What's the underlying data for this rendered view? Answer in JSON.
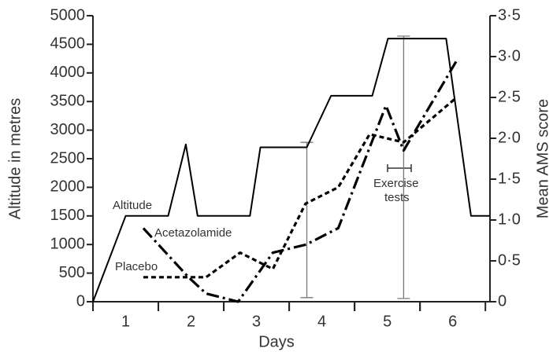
{
  "chart_data": {
    "type": "line",
    "x_label": "Days",
    "y_label": "Altitude in metres",
    "y2_label": "Mean AMS score",
    "xlim": [
      0.5,
      6.57
    ],
    "xticks": [
      1,
      2,
      3,
      4,
      5,
      6
    ],
    "ylim": [
      0,
      5000
    ],
    "yticks": [
      0,
      500,
      1000,
      1500,
      2000,
      2500,
      3000,
      3500,
      4000,
      4500,
      5000
    ],
    "y2lim": [
      0,
      3.5
    ],
    "y2ticks": [
      0,
      {
        "value": 0.5,
        "label": "0·5"
      },
      {
        "value": 1,
        "label": "1·0"
      },
      {
        "value": 1.5,
        "label": "1·5"
      },
      {
        "value": 2,
        "label": "2·0"
      },
      {
        "value": 2.5,
        "label": "2·5"
      },
      {
        "value": 3,
        "label": "3·0"
      },
      {
        "value": 3.5,
        "label": "3·5"
      }
    ],
    "series": [
      {
        "name": "Altitude",
        "color": "#000000",
        "style": "solid",
        "x": [
          0.5,
          1,
          1.65,
          1.92,
          2.1,
          2.9,
          3.06,
          3.77,
          4.14,
          4.77,
          5.01,
          5.9,
          6.28,
          6.57
        ],
        "values": [
          0,
          1500,
          1500,
          2750,
          1500,
          1500,
          2700,
          2700,
          3600,
          3600,
          4600,
          4600,
          1500,
          1500
        ]
      },
      {
        "name": "Acetazolamide",
        "color": "#000000",
        "style": "dashdot",
        "axis": "y2",
        "x": [
          1.27,
          1.96,
          2.23,
          2.72,
          3.25,
          3.76,
          4.25,
          4.98,
          5.25,
          6.06
        ],
        "values": [
          0.9,
          0.3,
          0.1,
          0,
          0.6,
          0.7,
          0.9,
          2.4,
          1.85,
          2.95
        ]
      },
      {
        "name": "Placebo",
        "color": "#000000",
        "style": "dotted",
        "axis": "y2",
        "x": [
          1.27,
          2.23,
          2.75,
          3.25,
          3.75,
          4.25,
          4.73,
          5.25,
          6.06
        ],
        "values": [
          0.3,
          0.3,
          0.6,
          0.4,
          1.2,
          1.4,
          2.05,
          1.95,
          2.5
        ]
      }
    ],
    "error_bars": [
      {
        "x": 3.77,
        "low": 0.05,
        "high": 1.95
      },
      {
        "x": 5.25,
        "low": 0.04,
        "high": 3.25
      }
    ],
    "annotation": "Exercise tests"
  }
}
